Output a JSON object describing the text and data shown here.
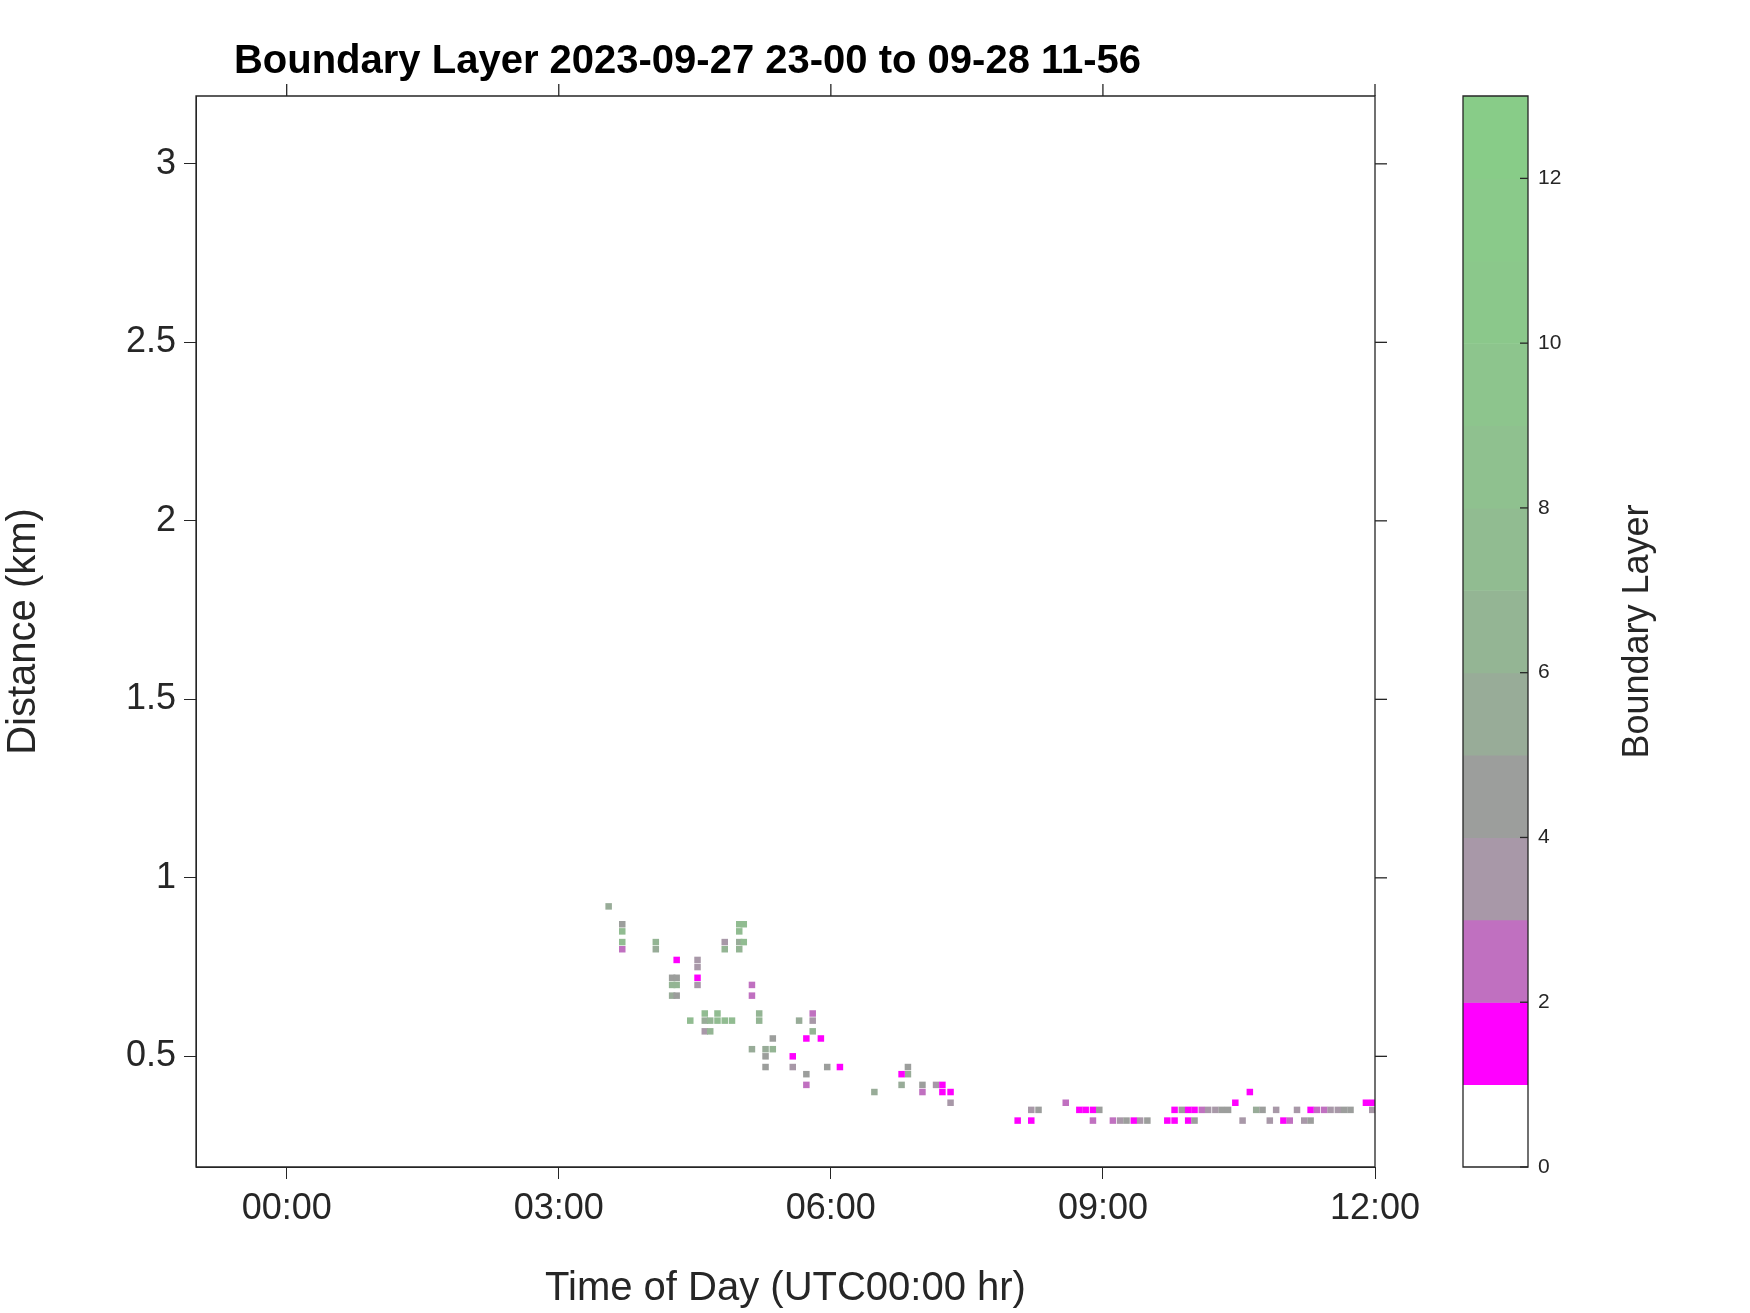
{
  "chart_data": {
    "type": "scatter",
    "title": "Boundary Layer 2023-09-27 23-00 to 09-28 11-56",
    "xlabel": "Time of Day (UTC00:00 hr)",
    "ylabel": "Distance (km)",
    "clabel": "Boundary Layer",
    "x": [
      3.55,
      3.7,
      3.7,
      3.7,
      3.7,
      4.07,
      4.07,
      4.3,
      4.25,
      4.25,
      4.25,
      4.3,
      4.3,
      4.3,
      4.53,
      4.53,
      4.53,
      4.53,
      4.83,
      4.83,
      4.99,
      4.99,
      4.99,
      4.99,
      5.04,
      5.04,
      5.13,
      5.13,
      4.45,
      4.61,
      4.61,
      4.61,
      4.67,
      4.67,
      4.75,
      4.75,
      4.83,
      4.91,
      5.21,
      5.21,
      5.65,
      5.8,
      5.8,
      5.8,
      5.73,
      5.89,
      5.36,
      5.36,
      5.28,
      5.28,
      5.28,
      5.13,
      5.58,
      5.58,
      5.96,
      6.1,
      5.73,
      5.73,
      6.48,
      6.85,
      6.85,
      6.78,
      6.78,
      7.01,
      7.01,
      7.16,
      7.23,
      7.23,
      7.32,
      7.32,
      8.06,
      8.21,
      8.21,
      8.29,
      8.59,
      8.74,
      8.81,
      8.89,
      8.96,
      8.89,
      9.11,
      9.19,
      9.26,
      9.34,
      9.41,
      9.49,
      9.71,
      9.79,
      9.79,
      9.87,
      9.94,
      10.01,
      10.09,
      10.16,
      10.24,
      10.31,
      10.38,
      9.94,
      10.01,
      10.46,
      10.62,
      10.54,
      10.69,
      10.76,
      10.84,
      10.91,
      10.99,
      11.06,
      11.14,
      11.22,
      11.29,
      11.29,
      11.36,
      11.44,
      11.51,
      11.59,
      11.66,
      11.73,
      11.9,
      11.97,
      11.97
    ],
    "values": [
      0.92,
      0.87,
      0.85,
      0.82,
      0.8,
      0.82,
      0.8,
      0.77,
      0.72,
      0.7,
      0.67,
      0.72,
      0.7,
      0.67,
      0.77,
      0.75,
      0.72,
      0.7,
      0.82,
      0.8,
      0.87,
      0.85,
      0.82,
      0.8,
      0.87,
      0.82,
      0.7,
      0.67,
      0.6,
      0.62,
      0.6,
      0.57,
      0.6,
      0.57,
      0.62,
      0.6,
      0.6,
      0.6,
      0.62,
      0.6,
      0.6,
      0.62,
      0.6,
      0.57,
      0.55,
      0.55,
      0.55,
      0.52,
      0.52,
      0.5,
      0.47,
      0.52,
      0.5,
      0.47,
      0.47,
      0.47,
      0.45,
      0.42,
      0.4,
      0.47,
      0.45,
      0.45,
      0.42,
      0.42,
      0.4,
      0.42,
      0.42,
      0.4,
      0.4,
      0.37,
      0.32,
      0.32,
      0.35,
      0.35,
      0.37,
      0.35,
      0.35,
      0.35,
      0.35,
      0.32,
      0.32,
      0.32,
      0.32,
      0.32,
      0.32,
      0.32,
      0.32,
      0.32,
      0.35,
      0.35,
      0.35,
      0.35,
      0.35,
      0.35,
      0.35,
      0.35,
      0.35,
      0.32,
      0.32,
      0.37,
      0.4,
      0.32,
      0.35,
      0.35,
      0.32,
      0.35,
      0.32,
      0.32,
      0.35,
      0.32,
      0.32,
      0.35,
      0.35,
      0.35,
      0.35,
      0.35,
      0.35,
      0.35,
      0.37,
      0.37,
      0.35
    ],
    "cvalues": [
      5.5,
      4.5,
      7.5,
      7.5,
      2.5,
      6.5,
      5.5,
      1.5,
      4.5,
      6.5,
      5.5,
      4.5,
      6.5,
      4.5,
      3.5,
      3.5,
      1.5,
      3.5,
      3.5,
      6.5,
      7.5,
      7.5,
      5.5,
      6.5,
      7.5,
      7.5,
      2.5,
      2.5,
      7.5,
      7.5,
      5.5,
      3.5,
      6.5,
      6.5,
      7.5,
      7.5,
      7.5,
      7.5,
      6.5,
      6.5,
      5.5,
      2.5,
      3.5,
      6.5,
      1.5,
      1.5,
      4.5,
      6.5,
      5.5,
      4.5,
      4.5,
      5.5,
      1.5,
      3.5,
      4.5,
      1.5,
      4.5,
      2.5,
      5.5,
      4.5,
      5.5,
      1.5,
      5.5,
      4.5,
      2.5,
      3.5,
      1.5,
      1.5,
      1.5,
      3.5,
      1.5,
      1.5,
      3.5,
      4.5,
      2.5,
      1.5,
      1.5,
      1.5,
      4.5,
      2.5,
      2.5,
      3.5,
      4.5,
      1.5,
      3.5,
      4.5,
      1.5,
      1.5,
      1.5,
      4.5,
      1.5,
      1.5,
      2.5,
      3.5,
      3.5,
      4.5,
      4.5,
      1.5,
      4.5,
      1.5,
      1.5,
      3.5,
      5.5,
      4.5,
      3.5,
      3.5,
      1.5,
      2.5,
      3.5,
      3.5,
      4.5,
      1.5,
      2.5,
      2.5,
      3.5,
      3.5,
      4.5,
      4.5,
      1.5,
      1.5,
      3.5
    ],
    "xlim": [
      -1,
      12
    ],
    "ylim": [
      0.19,
      3.19
    ],
    "xticks": [
      {
        "value": 0,
        "label": "00:00"
      },
      {
        "value": 3,
        "label": "03:00"
      },
      {
        "value": 6,
        "label": "06:00"
      },
      {
        "value": 9,
        "label": "09:00"
      },
      {
        "value": 12,
        "label": "12:00"
      }
    ],
    "yticks": [
      0.5,
      1,
      1.5,
      2,
      2.5,
      3
    ],
    "clim": [
      0,
      13
    ],
    "cticks": [
      0,
      2,
      4,
      6,
      8,
      10,
      12
    ],
    "marker": "square",
    "grid": false,
    "legend": false
  }
}
